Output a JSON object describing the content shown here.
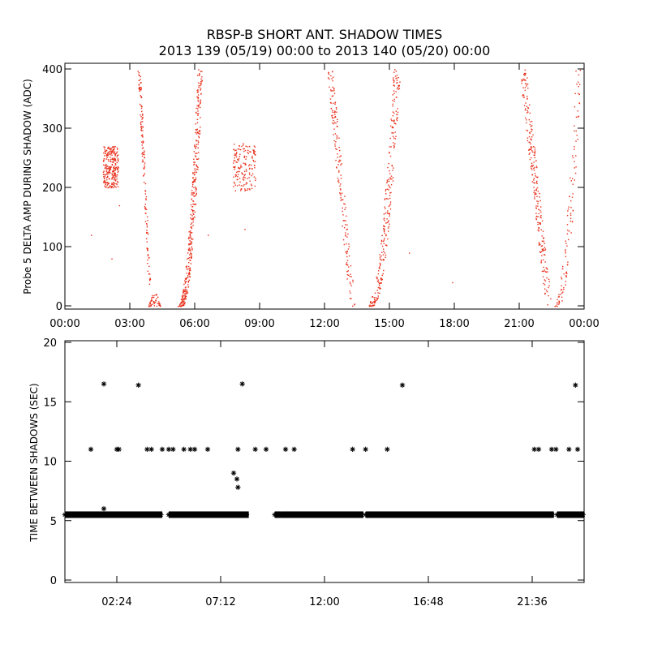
{
  "chart_data": [
    {
      "type": "scatter",
      "title": "RBSP-B SHORT ANT. SHADOW TIMES",
      "subtitle": "2013 139 (05/19) 00:00 to 2013 140 (05/20) 00:00",
      "ylabel": "Probe 5 DELTA AMP DURING SHADOW (ADC)",
      "xlabel": "",
      "xlim_hours": [
        0,
        24
      ],
      "ylim": [
        0,
        400
      ],
      "x_ticks": [
        "00:00",
        "03:00",
        "06:00",
        "09:00",
        "12:00",
        "15:00",
        "18:00",
        "21:00",
        "00:00"
      ],
      "y_ticks": [
        "0",
        "100",
        "200",
        "300",
        "400"
      ],
      "grid": false,
      "marker": "dot",
      "color": "#e8301c",
      "clusters": [
        {
          "x": [
            1.75,
            2.45
          ],
          "y": [
            200,
            270
          ],
          "n": 260
        },
        {
          "x": [
            3.35,
            3.95
          ],
          "y": [
            35,
            400
          ],
          "n": 140,
          "shape": "rise_left"
        },
        {
          "x": [
            3.85,
            4.4
          ],
          "y": [
            0,
            25
          ],
          "n": 50,
          "shape": "arc"
        },
        {
          "x": [
            5.2,
            6.35
          ],
          "y": [
            0,
            400
          ],
          "n": 360,
          "shape": "rise_right"
        },
        {
          "x": [
            7.75,
            8.8
          ],
          "y": [
            195,
            275
          ],
          "n": 160
        },
        {
          "x": [
            12.1,
            13.4
          ],
          "y": [
            0,
            400
          ],
          "n": 170,
          "shape": "rise_left"
        },
        {
          "x": [
            13.9,
            15.5
          ],
          "y": [
            0,
            400
          ],
          "n": 260,
          "shape": "rise_right"
        },
        {
          "x": [
            21.0,
            22.5
          ],
          "y": [
            0,
            400
          ],
          "n": 240,
          "shape": "rise_left"
        },
        {
          "x": [
            22.55,
            23.85
          ],
          "y": [
            0,
            400
          ],
          "n": 110,
          "shape": "rise_right"
        }
      ],
      "sparse_points": [
        [
          1.2,
          120
        ],
        [
          2.15,
          80
        ],
        [
          2.5,
          170
        ],
        [
          6.6,
          120
        ],
        [
          8.3,
          130
        ],
        [
          15.9,
          90
        ],
        [
          17.9,
          40
        ]
      ]
    },
    {
      "type": "scatter",
      "title": "",
      "ylabel": "TIME BETWEEN SHADOWS (SEC)",
      "xlabel": "",
      "xlim_hours": [
        0,
        24
      ],
      "ylim": [
        0,
        20
      ],
      "x_ticks": [
        "02:24",
        "07:12",
        "12:00",
        "16:48",
        "21:36"
      ],
      "y_ticks": [
        "0",
        "5",
        "10",
        "15",
        "20"
      ],
      "grid": false,
      "marker": "asterisk",
      "color": "#000000",
      "baseline_value": 5.5,
      "baseline_segments": [
        [
          0.0,
          4.5
        ],
        [
          4.8,
          8.5
        ],
        [
          9.7,
          10.0
        ],
        [
          10.0,
          13.8
        ],
        [
          13.9,
          22.6
        ],
        [
          22.75,
          24.0
        ]
      ],
      "points": [
        [
          1.2,
          11.0
        ],
        [
          1.8,
          16.5
        ],
        [
          1.8,
          6.0
        ],
        [
          2.4,
          11.0
        ],
        [
          2.5,
          11.0
        ],
        [
          3.4,
          16.4
        ],
        [
          3.8,
          11.0
        ],
        [
          4.0,
          11.0
        ],
        [
          4.5,
          11.0
        ],
        [
          4.8,
          11.0
        ],
        [
          5.0,
          11.0
        ],
        [
          5.5,
          11.0
        ],
        [
          5.8,
          11.0
        ],
        [
          6.0,
          11.0
        ],
        [
          6.6,
          11.0
        ],
        [
          7.8,
          9.0
        ],
        [
          7.95,
          8.5
        ],
        [
          8.0,
          7.8
        ],
        [
          8.0,
          11.0
        ],
        [
          8.2,
          16.5
        ],
        [
          8.8,
          11.0
        ],
        [
          9.3,
          11.0
        ],
        [
          10.2,
          11.0
        ],
        [
          10.6,
          11.0
        ],
        [
          13.3,
          11.0
        ],
        [
          13.9,
          11.0
        ],
        [
          14.9,
          11.0
        ],
        [
          15.6,
          16.4
        ],
        [
          21.7,
          11.0
        ],
        [
          21.9,
          11.0
        ],
        [
          22.5,
          11.0
        ],
        [
          22.7,
          11.0
        ],
        [
          23.3,
          11.0
        ],
        [
          23.6,
          16.4
        ],
        [
          23.7,
          11.0
        ]
      ]
    }
  ]
}
